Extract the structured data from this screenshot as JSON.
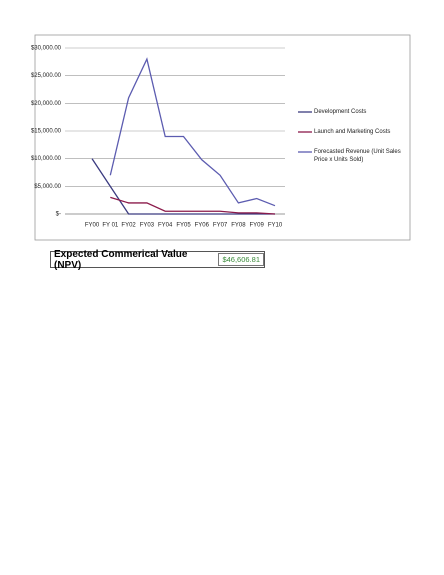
{
  "chart_data": {
    "type": "line",
    "categories": [
      "FY00",
      "FY 01",
      "FY02",
      "FY03",
      "FY04",
      "FY05",
      "FY06",
      "FY07",
      "FY08",
      "FY09",
      "FY10"
    ],
    "series": [
      {
        "name": "Development Costs",
        "color": "#3b3b80",
        "values": [
          10000,
          5000,
          0,
          0,
          0,
          0,
          0,
          0,
          0,
          0,
          0
        ]
      },
      {
        "name": "Launch and Marketing Costs",
        "color": "#8b1a4a",
        "values": [
          null,
          3000,
          2000,
          2000,
          500,
          500,
          500,
          500,
          200,
          200,
          0
        ]
      },
      {
        "name": "Forecasted Revenue (Unit Sales Price x Units Sold)",
        "color": "#5c5cb0",
        "values": [
          null,
          7000,
          21000,
          28000,
          14000,
          14000,
          9800,
          7000,
          2000,
          2800,
          1500
        ]
      }
    ],
    "ylim": [
      0,
      30000
    ],
    "yticks": [
      {
        "value": 0,
        "label": "$-"
      },
      {
        "value": 5000,
        "label": "$5,000.00"
      },
      {
        "value": 10000,
        "label": "$10,000.00"
      },
      {
        "value": 15000,
        "label": "$15,000.00"
      },
      {
        "value": 20000,
        "label": "$20,000.00"
      },
      {
        "value": 25000,
        "label": "$25,000.00"
      },
      {
        "value": 30000,
        "label": "$30,000.00"
      }
    ],
    "grid": true,
    "legend": "right"
  },
  "npv_box": {
    "label": "Expected Commerical Value (NPV)",
    "value": "$46,606.81"
  }
}
